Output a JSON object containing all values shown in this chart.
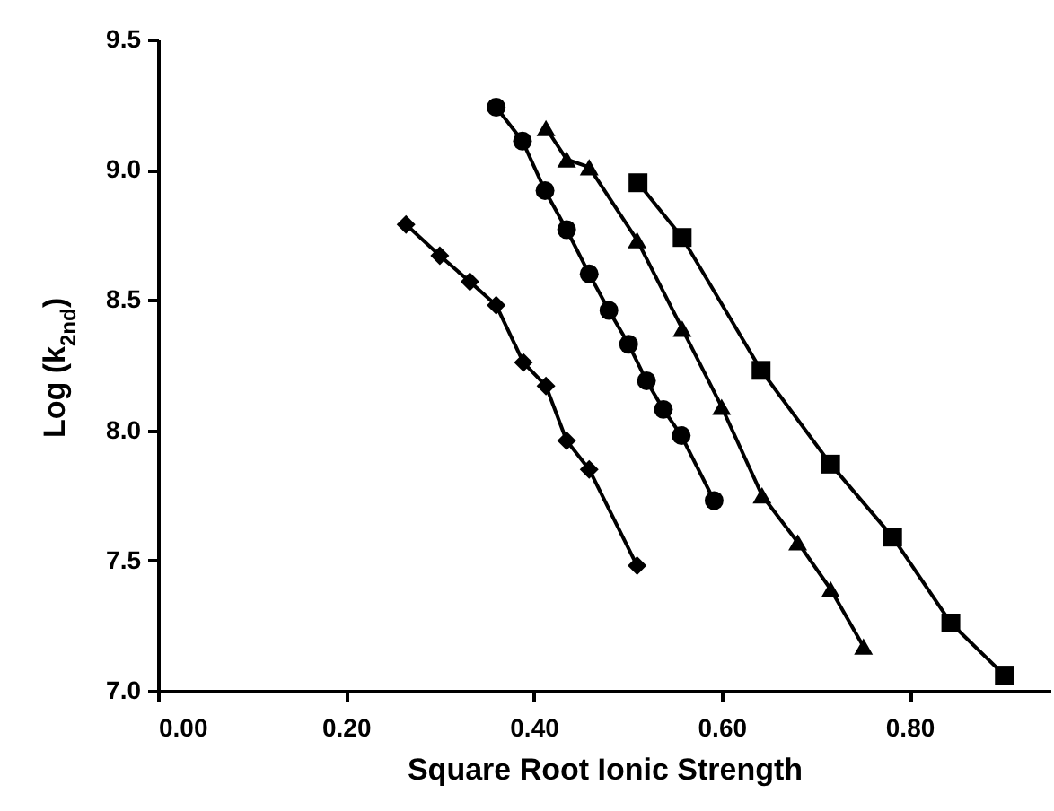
{
  "chart_data": {
    "type": "line",
    "xlabel": "Square Root Ionic Strength",
    "ylabel": "Log (k$_{2nd}$)",
    "xlim": [
      0,
      0.95
    ],
    "xticks": [
      {
        "value": 0,
        "label": "0.00"
      },
      {
        "value": 0.2,
        "label": "0.20"
      },
      {
        "value": 0.4,
        "label": "0.40"
      },
      {
        "value": 0.6,
        "label": "0.60"
      },
      {
        "value": 0.8,
        "label": "0.80"
      }
    ],
    "ylim": [
      7.0,
      9.5
    ],
    "yticks": [
      {
        "value": 7,
        "label": "7.0"
      },
      {
        "value": 7.5,
        "label": "7.5"
      },
      {
        "value": 8,
        "label": "8.0"
      },
      {
        "value": 8.5,
        "label": "8.5"
      },
      {
        "value": 9,
        "label": "9.0"
      },
      {
        "value": 9.5,
        "label": "9.5"
      }
    ],
    "grid": false,
    "line_style": "solid",
    "series": [
      {
        "color": "#000000",
        "marker": "diamond",
        "x": [
          0.264,
          0.3,
          0.332,
          0.36,
          0.389,
          0.413,
          0.435,
          0.459,
          0.51
        ],
        "values": [
          8.79,
          8.67,
          8.57,
          8.48,
          8.26,
          8.17,
          7.96,
          7.85,
          7.48
        ]
      },
      {
        "color": "#000000",
        "marker": "circle",
        "x": [
          0.36,
          0.388,
          0.412,
          0.435,
          0.459,
          0.48,
          0.501,
          0.52,
          0.538,
          0.557,
          0.592
        ],
        "values": [
          9.24,
          9.11,
          8.92,
          8.77,
          8.6,
          8.46,
          8.33,
          8.19,
          8.08,
          7.98,
          7.73
        ]
      },
      {
        "color": "#000000",
        "marker": "triangle",
        "x": [
          0.413,
          0.435,
          0.459,
          0.51,
          0.558,
          0.6,
          0.643,
          0.681,
          0.716,
          0.751
        ],
        "values": [
          9.16,
          9.04,
          9.01,
          8.73,
          8.39,
          8.09,
          7.75,
          7.57,
          7.39,
          7.17
        ]
      },
      {
        "color": "#000000",
        "marker": "square",
        "x": [
          0.511,
          0.558,
          0.642,
          0.716,
          0.782,
          0.844,
          0.901
        ],
        "values": [
          8.95,
          8.74,
          8.23,
          7.87,
          7.59,
          7.26,
          7.06
        ]
      }
    ]
  }
}
